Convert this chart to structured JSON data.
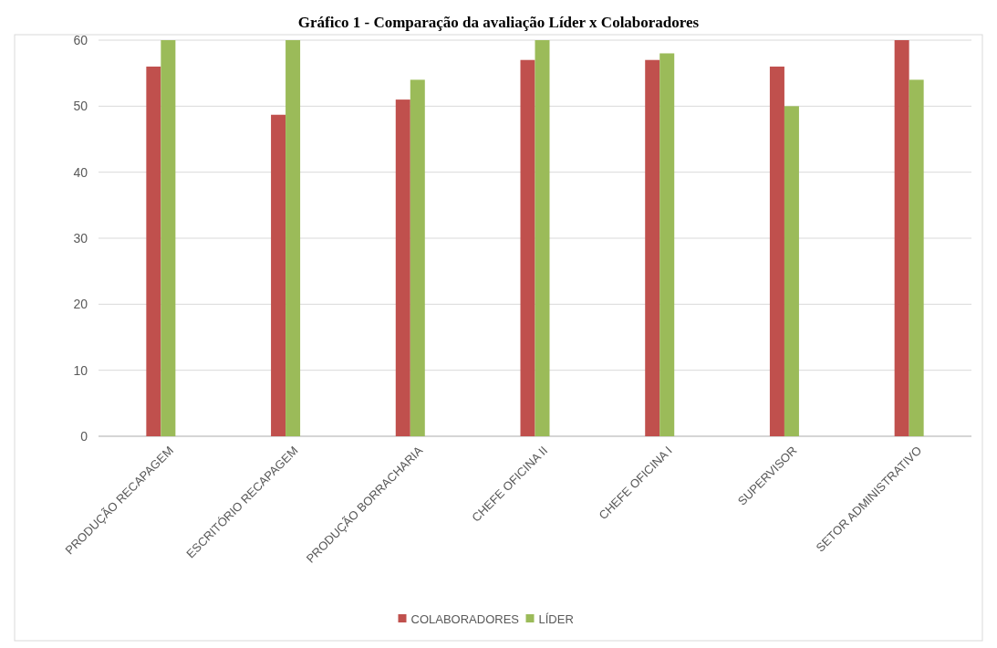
{
  "chart_data": {
    "type": "bar",
    "title": "Gráfico 1 - Comparação da avaliação Líder x Colaboradores",
    "categories": [
      "PRODUÇÃO RECAPAGEM",
      "ESCRITÓRIO RECAPAGEM",
      "PRODUÇÃO BORRACHARIA",
      "CHEFE OFICINA II",
      "CHEFE OFICINA I",
      "SUPERVISOR",
      "SETOR ADMINISTRATIVO"
    ],
    "series": [
      {
        "name": "COLABORADORES",
        "color": "#c0504d",
        "values": [
          56,
          48.7,
          51,
          57,
          57,
          56,
          60
        ]
      },
      {
        "name": "LÍDER",
        "color": "#9bbb59",
        "values": [
          60,
          60,
          54,
          60,
          58,
          50,
          54
        ]
      }
    ],
    "ylim": [
      0,
      60
    ],
    "yticks": [
      0,
      10,
      20,
      30,
      40,
      50,
      60
    ],
    "grid": "y",
    "legend": "bottom"
  }
}
